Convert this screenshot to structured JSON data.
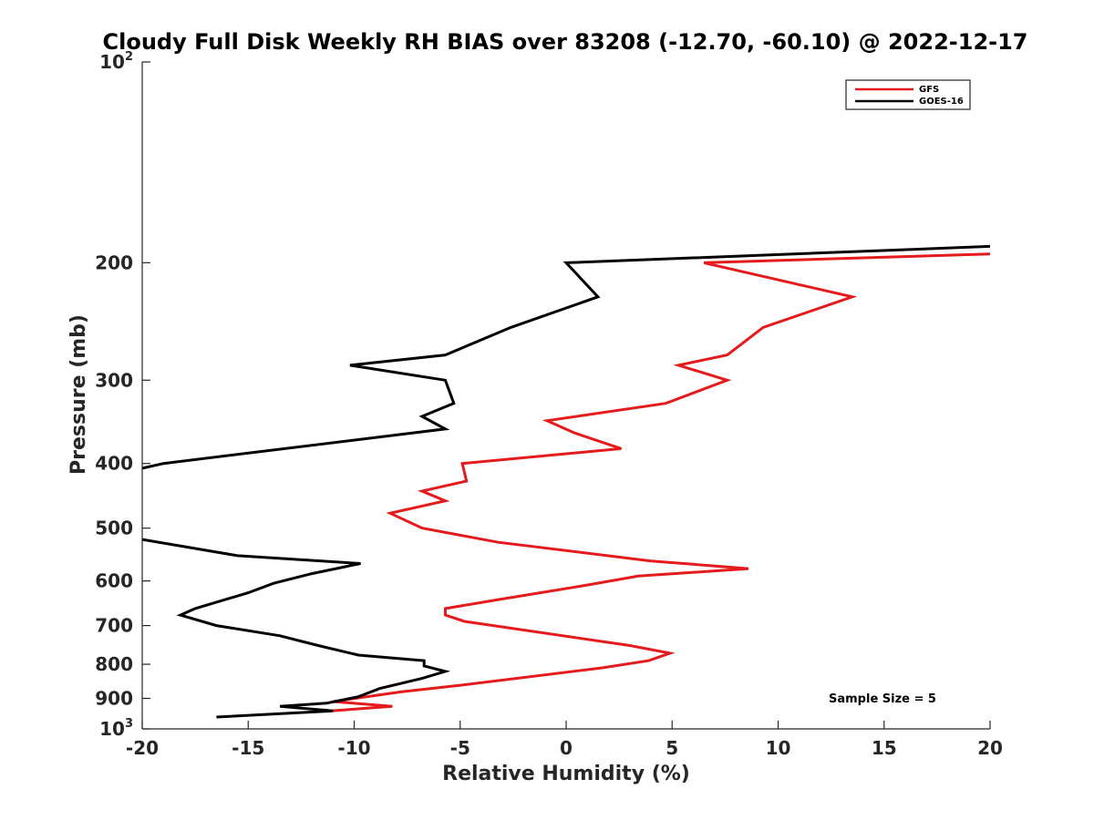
{
  "chart_data": {
    "type": "line",
    "title": "Cloudy Full Disk Weekly RH BIAS over 83208 (-12.70, -60.10) @ 2022-12-17",
    "xlabel": "Relative Humidity (%)",
    "ylabel": "Pressure (mb)",
    "xlim": [
      -20,
      20
    ],
    "ylim": [
      100,
      1000
    ],
    "yscale": "log",
    "yreversed": true,
    "xticks": [
      -20,
      -15,
      -10,
      -5,
      0,
      5,
      10,
      15,
      20
    ],
    "xtick_labels": [
      "-20",
      "-15",
      "-10",
      "-5",
      "0",
      "5",
      "10",
      "15",
      "20"
    ],
    "yticks": [
      100,
      200,
      300,
      400,
      500,
      600,
      700,
      800,
      900,
      1000
    ],
    "ytick_labels": [
      {
        "base": "10",
        "sup": "2"
      },
      {
        "base": "200"
      },
      {
        "base": "300"
      },
      {
        "base": "400"
      },
      {
        "base": "500"
      },
      {
        "base": "600"
      },
      {
        "base": "700"
      },
      {
        "base": "800"
      },
      {
        "base": "900"
      },
      {
        "base": "10",
        "sup": "3"
      }
    ],
    "legend_position": "top-right",
    "annotation": "Sample Size = 5",
    "series": [
      {
        "name": "GFS",
        "color": "#e41a1c",
        "points": [
          [
            20.0,
            194
          ],
          [
            6.5,
            200
          ],
          [
            13.5,
            225
          ],
          [
            9.3,
            250
          ],
          [
            7.6,
            275
          ],
          [
            5.3,
            285
          ],
          [
            7.6,
            300
          ],
          [
            4.7,
            325
          ],
          [
            -0.9,
            345
          ],
          [
            0.4,
            360
          ],
          [
            2.6,
            380
          ],
          [
            -4.9,
            400
          ],
          [
            -4.7,
            425
          ],
          [
            -6.8,
            440
          ],
          [
            -5.7,
            455
          ],
          [
            -8.3,
            475
          ],
          [
            -6.8,
            500
          ],
          [
            -3.2,
            525
          ],
          [
            4.0,
            560
          ],
          [
            8.6,
            575
          ],
          [
            3.4,
            590
          ],
          [
            0.8,
            610
          ],
          [
            -3.2,
            640
          ],
          [
            -5.7,
            660
          ],
          [
            -5.7,
            675
          ],
          [
            -4.8,
            690
          ],
          [
            3.0,
            750
          ],
          [
            4.9,
            770
          ],
          [
            3.9,
            790
          ],
          [
            1.7,
            810
          ],
          [
            -5.0,
            860
          ],
          [
            -7.8,
            880
          ],
          [
            -11.0,
            910
          ],
          [
            -8.2,
            925
          ],
          [
            -11.1,
            940
          ]
        ]
      },
      {
        "name": "GOES-16",
        "color": "#000000",
        "points": [
          [
            20.0,
            189
          ],
          [
            0.0,
            200
          ],
          [
            1.5,
            225
          ],
          [
            -2.6,
            250
          ],
          [
            -5.7,
            275
          ],
          [
            -10.2,
            285
          ],
          [
            -5.7,
            300
          ],
          [
            -5.3,
            325
          ],
          [
            -6.8,
            340
          ],
          [
            -5.7,
            355
          ],
          [
            -19.0,
            400
          ],
          [
            -20.5,
            410
          ],
          [
            null,
            null
          ],
          [
            -20.0,
            520
          ],
          [
            -15.5,
            550
          ],
          [
            -9.7,
            565
          ],
          [
            -12.0,
            585
          ],
          [
            -13.8,
            605
          ],
          [
            -15.0,
            625
          ],
          [
            -17.5,
            660
          ],
          [
            -18.2,
            675
          ],
          [
            -16.5,
            700
          ],
          [
            -13.5,
            725
          ],
          [
            -11.7,
            750
          ],
          [
            -9.8,
            775
          ],
          [
            -6.7,
            790
          ],
          [
            -6.7,
            805
          ],
          [
            -5.7,
            820
          ],
          [
            -6.8,
            840
          ],
          [
            -8.8,
            870
          ],
          [
            -9.8,
            895
          ],
          [
            -11.3,
            915
          ],
          [
            -13.5,
            925
          ],
          [
            -11.0,
            940
          ],
          [
            -16.5,
            960
          ]
        ]
      }
    ]
  }
}
